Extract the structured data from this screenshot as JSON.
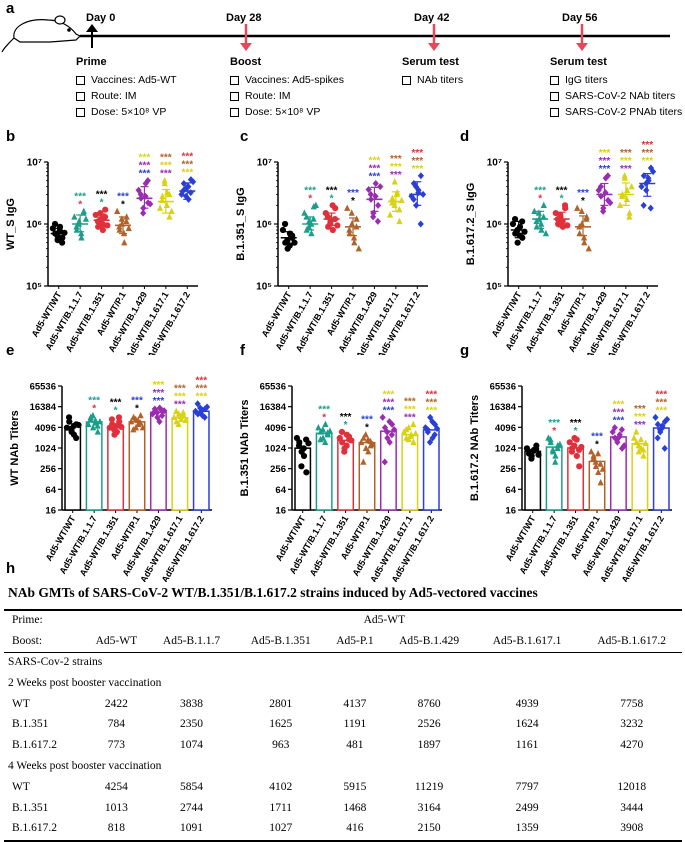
{
  "figure": {
    "panel_labels": [
      "a",
      "b",
      "c",
      "d",
      "e",
      "f",
      "g",
      "h"
    ],
    "timeline": {
      "days": [
        "Day 0",
        "Day 28",
        "Day 42",
        "Day 56"
      ],
      "prime": {
        "title": "Prime",
        "items": [
          "Vaccines: Ad5-WT",
          "Route:  IM",
          "Dose:   5×10⁸ VP"
        ]
      },
      "boost": {
        "title": "Boost",
        "items": [
          "Vaccines: Ad5-spikes",
          "Route:  IM",
          "Dose:   5×10⁸ VP"
        ]
      },
      "serum1": {
        "title": "Serum test",
        "items": [
          "NAb titers"
        ]
      },
      "serum2": {
        "title": "Serum test",
        "items": [
          "IgG titers",
          "SARS-CoV-2 NAb titers",
          "SARS-CoV-2 PNAb titers"
        ]
      }
    },
    "colors": {
      "black": "#000000",
      "teal": "#1a9e8a",
      "red": "#e0303c",
      "brown": "#b0622a",
      "purple": "#9a2cb0",
      "yellow": "#d9d215",
      "blue": "#2a3fd6"
    }
  },
  "chart_data": [
    {
      "panel": "b",
      "type": "scatter",
      "ylabel": "WT_S IgG",
      "scale": "log10",
      "ylim": [
        100000,
        10000000
      ],
      "yticks": [
        {
          "v": 100000,
          "label": "10⁵"
        },
        {
          "v": 1000000,
          "label": "10⁶"
        },
        {
          "v": 10000000,
          "label": "10⁷"
        }
      ],
      "categories": [
        "Ad5-WT/WT",
        "Ad5-WT/B.1.1.7",
        "Ad5-WT/B.1.351",
        "Ad5-WT/P.1",
        "Ad5-WT/B.1.429",
        "Ad5-WT/B.1.617.1",
        "Ad5-WT/B.1.617.2"
      ],
      "means": [
        700000,
        1000000,
        1150000,
        950000,
        2600000,
        2300000,
        3400000
      ],
      "points": [
        [
          850000,
          700000,
          550000,
          900000,
          600000,
          1000000,
          650000,
          780000,
          500000,
          720000
        ],
        [
          1300000,
          800000,
          1100000,
          600000,
          1600000,
          900000,
          1000000,
          700000,
          1500000,
          1200000
        ],
        [
          1400000,
          900000,
          1200000,
          800000,
          1700000,
          1100000,
          1500000,
          1000000,
          1300000,
          950000
        ],
        [
          1600000,
          800000,
          1000000,
          500000,
          1300000,
          900000,
          1200000,
          700000,
          1100000,
          850000
        ],
        [
          3500000,
          2600000,
          1800000,
          4500000,
          2200000,
          3000000,
          1500000,
          2800000,
          5000000,
          2100000
        ],
        [
          1800000,
          2800000,
          4500000,
          3200000,
          1300000,
          2400000,
          5000000,
          2000000,
          3000000,
          1600000
        ],
        [
          3000000,
          4500000,
          3800000,
          2500000,
          5200000,
          3500000,
          2800000,
          4000000,
          3200000,
          4800000
        ]
      ],
      "errors": [
        [
          580000,
          850000
        ],
        [
          750000,
          1400000
        ],
        [
          900000,
          1450000
        ],
        [
          700000,
          1300000
        ],
        [
          1800000,
          4000000
        ],
        [
          1500000,
          3600000
        ],
        [
          2500000,
          4600000
        ]
      ]
    },
    {
      "panel": "c",
      "type": "scatter",
      "ylabel": "B.1.351_S IgG",
      "scale": "log10",
      "ylim": [
        100000,
        10000000
      ],
      "yticks": [
        {
          "v": 100000,
          "label": "10⁵"
        },
        {
          "v": 1000000,
          "label": "10⁶"
        },
        {
          "v": 10000000,
          "label": "10⁷"
        }
      ],
      "categories": [
        "Ad5-WT/WT",
        "Ad5-WT/B.1.1.7",
        "Ad5-WT/B.1.351",
        "Ad5-WT/P.1",
        "Ad5-WT/B.1.429",
        "Ad5-WT/B.1.617.1",
        "Ad5-WT/B.1.617.2"
      ],
      "means": [
        600000,
        1000000,
        1200000,
        900000,
        2500000,
        2300000,
        3000000
      ],
      "points": [
        [
          800000,
          500000,
          400000,
          700000,
          600000,
          1000000,
          550000,
          450000,
          650000,
          500000
        ],
        [
          1500000,
          800000,
          1100000,
          700000,
          1900000,
          1300000,
          900000,
          1000000,
          1200000,
          2000000
        ],
        [
          1500000,
          900000,
          1100000,
          800000,
          1800000,
          1300000,
          1000000,
          2000000,
          1200000,
          950000
        ],
        [
          1800000,
          700000,
          1000000,
          500000,
          1200000,
          800000,
          1500000,
          600000,
          900000,
          400000
        ],
        [
          3600000,
          2500000,
          1500000,
          4500000,
          2000000,
          3000000,
          1300000,
          2800000,
          1100000,
          4000000
        ],
        [
          1400000,
          2600000,
          4800000,
          3200000,
          1100000,
          2200000,
          2000000,
          3000000,
          1700000,
          2400000
        ],
        [
          2800000,
          4500000,
          2000000,
          3500000,
          6000000,
          2500000,
          4000000,
          3200000,
          1000000,
          3000000
        ]
      ],
      "errors": [
        [
          480000,
          750000
        ],
        [
          800000,
          1300000
        ],
        [
          950000,
          1500000
        ],
        [
          650000,
          1250000
        ],
        [
          1600000,
          3900000
        ],
        [
          1600000,
          3300000
        ],
        [
          2000000,
          4800000
        ]
      ]
    },
    {
      "panel": "d",
      "type": "scatter",
      "ylabel": "B.1.617.2_S IgG",
      "scale": "log10",
      "ylim": [
        100000,
        10000000
      ],
      "yticks": [
        {
          "v": 100000,
          "label": "10⁵"
        },
        {
          "v": 1000000,
          "label": "10⁶"
        },
        {
          "v": 10000000,
          "label": "10⁷"
        }
      ],
      "categories": [
        "Ad5-WT/WT",
        "Ad5-WT/B.1.1.7",
        "Ad5-WT/B.1.351",
        "Ad5-WT/P.1",
        "Ad5-WT/B.1.429",
        "Ad5-WT/B.1.617.1",
        "Ad5-WT/B.1.617.2"
      ],
      "means": [
        800000,
        1200000,
        1200000,
        900000,
        3000000,
        3000000,
        4500000
      ],
      "points": [
        [
          1000000,
          700000,
          500000,
          900000,
          600000,
          1200000,
          800000,
          650000,
          1100000,
          750000
        ],
        [
          1600000,
          900000,
          1200000,
          800000,
          2000000,
          1100000,
          1500000,
          1000000,
          1300000,
          700000
        ],
        [
          1500000,
          1000000,
          1300000,
          900000,
          1800000,
          1200000,
          1400000,
          1100000,
          2000000,
          950000
        ],
        [
          1800000,
          700000,
          1000000,
          500000,
          1300000,
          900000,
          1600000,
          600000,
          1200000,
          400000
        ],
        [
          3500000,
          2800000,
          1800000,
          5500000,
          2400000,
          4000000,
          1600000,
          3200000,
          6000000,
          2200000
        ],
        [
          2000000,
          3000000,
          5500000,
          3500000,
          1500000,
          2800000,
          6000000,
          2500000,
          1300000,
          4000000
        ],
        [
          4000000,
          6000000,
          3500000,
          5000000,
          8000000,
          2000000,
          4500000,
          5500000,
          1800000,
          7000000
        ]
      ],
      "errors": [
        [
          600000,
          1100000
        ],
        [
          850000,
          1600000
        ],
        [
          900000,
          1550000
        ],
        [
          650000,
          1350000
        ],
        [
          2000000,
          4500000
        ],
        [
          2000000,
          4600000
        ],
        [
          2800000,
          6500000
        ]
      ]
    },
    {
      "panel": "e",
      "type": "bar",
      "ylabel": "WT NAb Titers",
      "scale": "log2",
      "ylim": [
        16,
        65536
      ],
      "yticks": [
        {
          "v": 16,
          "label": "16"
        },
        {
          "v": 64,
          "label": "64"
        },
        {
          "v": 256,
          "label": "256"
        },
        {
          "v": 1024,
          "label": "1024"
        },
        {
          "v": 4096,
          "label": "4096"
        },
        {
          "v": 16384,
          "label": "16384"
        },
        {
          "v": 65536,
          "label": "65536"
        }
      ],
      "categories": [
        "Ad5-WT/WT",
        "Ad5-WT/B.1.1.7",
        "Ad5-WT/B.1.351",
        "Ad5-WT/P.1",
        "Ad5-WT/B.1.429",
        "Ad5-WT/B.1.617.1",
        "Ad5-WT/B.1.617.2"
      ],
      "values": [
        4254,
        5854,
        4102,
        5915,
        11219,
        7797,
        12018
      ],
      "points": [
        [
          4000,
          6000,
          3000,
          2500,
          5000,
          8000,
          3500,
          4500,
          2000,
          4800
        ],
        [
          5000,
          8000,
          4000,
          6500,
          3000,
          7000,
          9000,
          5500,
          4500,
          6000
        ],
        [
          4000,
          5000,
          2500,
          3000,
          6000,
          7000,
          3500,
          4500,
          8000,
          4200
        ],
        [
          6000,
          8000,
          4000,
          5000,
          9000,
          3500,
          7000,
          6500,
          5500,
          4000
        ],
        [
          10000,
          12000,
          8000,
          15000,
          9000,
          14000,
          11000,
          6000,
          13000,
          12500
        ],
        [
          8000,
          6000,
          10000,
          7000,
          9000,
          12000,
          5000,
          8500,
          11000,
          6500
        ],
        [
          12000,
          10000,
          15000,
          9000,
          14000,
          20000,
          11000,
          13000,
          8000,
          16000
        ]
      ]
    },
    {
      "panel": "f",
      "type": "bar",
      "ylabel": "B.1.351 NAb Titers",
      "scale": "log2",
      "ylim": [
        16,
        65536
      ],
      "yticks": [
        {
          "v": 16,
          "label": "16"
        },
        {
          "v": 64,
          "label": "64"
        },
        {
          "v": 256,
          "label": "256"
        },
        {
          "v": 1024,
          "label": "1024"
        },
        {
          "v": 4096,
          "label": "4096"
        },
        {
          "v": 16384,
          "label": "16384"
        },
        {
          "v": 65536,
          "label": "65536"
        }
      ],
      "categories": [
        "Ad5-WT/WT",
        "Ad5-WT/B.1.1.7",
        "Ad5-WT/B.1.351",
        "Ad5-WT/P.1",
        "Ad5-WT/B.1.429",
        "Ad5-WT/B.1.617.1",
        "Ad5-WT/B.1.617.2"
      ],
      "values": [
        1013,
        2744,
        1711,
        1468,
        3164,
        2499,
        3444
      ],
      "points": [
        [
          2000,
          1500,
          800,
          600,
          200,
          1200,
          300,
          1000,
          1800,
          1400
        ],
        [
          4000,
          3000,
          2000,
          5000,
          2500,
          1800,
          3500,
          1500,
          2800,
          3200
        ],
        [
          2000,
          1500,
          1000,
          2500,
          1800,
          3000,
          800,
          1200,
          2200,
          1700
        ],
        [
          1500,
          2000,
          1000,
          800,
          1200,
          400,
          2500,
          1800,
          1600,
          1300
        ],
        [
          8000,
          4000,
          2000,
          1500,
          5000,
          400,
          3000,
          6000,
          2500,
          3500
        ],
        [
          3000,
          2000,
          4000,
          2500,
          1500,
          3500,
          1800,
          2200,
          5000,
          2700
        ],
        [
          4000,
          3000,
          8000,
          2000,
          5000,
          3500,
          1500,
          6000,
          2500,
          3800
        ]
      ]
    },
    {
      "panel": "g",
      "type": "bar",
      "ylabel": "B.1.617.2 NAb Titers",
      "scale": "log2",
      "ylim": [
        16,
        65536
      ],
      "yticks": [
        {
          "v": 16,
          "label": "16"
        },
        {
          "v": 64,
          "label": "64"
        },
        {
          "v": 256,
          "label": "256"
        },
        {
          "v": 1024,
          "label": "1024"
        },
        {
          "v": 4096,
          "label": "4096"
        },
        {
          "v": 16384,
          "label": "16384"
        },
        {
          "v": 65536,
          "label": "65536"
        }
      ],
      "categories": [
        "Ad5-WT/WT",
        "Ad5-WT/B.1.1.7",
        "Ad5-WT/B.1.351",
        "Ad5-WT/P.1",
        "Ad5-WT/B.1.429",
        "Ad5-WT/B.1.617.1",
        "Ad5-WT/B.1.617.2"
      ],
      "values": [
        818,
        1091,
        1027,
        416,
        2150,
        1359,
        3908
      ],
      "points": [
        [
          1000,
          800,
          600,
          900,
          1200,
          700,
          500,
          850,
          950,
          650
        ],
        [
          2000,
          1500,
          800,
          600,
          1200,
          1800,
          900,
          400,
          1000,
          1300
        ],
        [
          1500,
          1000,
          2000,
          600,
          300,
          800,
          1200,
          1800,
          900,
          1100
        ],
        [
          800,
          600,
          300,
          200,
          100,
          500,
          400,
          700,
          350,
          250
        ],
        [
          3000,
          2000,
          1500,
          2500,
          1000,
          4000,
          1800,
          2200,
          3500,
          1200
        ],
        [
          2000,
          1500,
          800,
          1000,
          600,
          3000,
          1200,
          1800,
          900,
          1400
        ],
        [
          8000,
          5000,
          3000,
          4000,
          6000,
          2000,
          3500,
          4500,
          1000,
          7000
        ]
      ]
    },
    {
      "panel": "h",
      "type": "table",
      "title": "NAb GMTs of SARS-CoV-2 WT/B.1.351/B.1.617.2 strains induced by Ad5-vectored vaccines",
      "prime_label": "Prime:",
      "prime_value": "Ad5-WT",
      "boost_label": "Boost:",
      "columns": [
        "Ad5-WT",
        "Ad5-B.1.1.7",
        "Ad5-B.1.351",
        "Ad5-P.1",
        "Ad5-B.1.429",
        "Ad5-B.1.617.1",
        "Ad5-B.1.617.2"
      ],
      "strains_label": "SARS-Cov-2 strains",
      "sections": [
        {
          "title": "2 Weeks post booster vaccination",
          "rows": [
            {
              "label": "WT",
              "values": [
                "2422",
                "3838",
                "2801",
                "4137",
                "8760",
                "4939",
                "7758"
              ]
            },
            {
              "label": "B.1.351",
              "values": [
                "784",
                "2350",
                "1625",
                "1191",
                "2526",
                "1624",
                "3232"
              ]
            },
            {
              "label": "B.1.617.2",
              "values": [
                "773",
                "1074",
                "963",
                "481",
                "1897",
                "1161",
                "4270"
              ]
            }
          ]
        },
        {
          "title": "4 Weeks post booster vaccination",
          "rows": [
            {
              "label": "WT",
              "values": [
                "4254",
                "5854",
                "4102",
                "5915",
                "11219",
                "7797",
                "12018"
              ]
            },
            {
              "label": "B.1.351",
              "values": [
                "1013",
                "2744",
                "1711",
                "1468",
                "3164",
                "2499",
                "3444"
              ]
            },
            {
              "label": "B.1.617.2",
              "values": [
                "818",
                "1091",
                "1027",
                "416",
                "2150",
                "1359",
                "3908"
              ]
            }
          ]
        }
      ]
    }
  ]
}
